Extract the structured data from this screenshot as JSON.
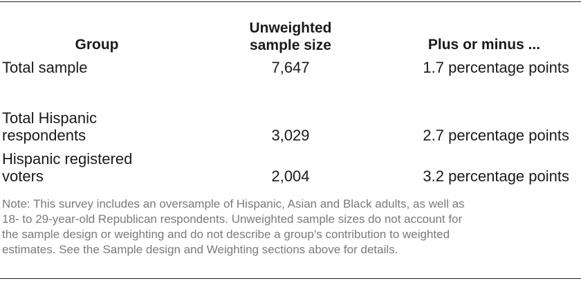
{
  "table": {
    "headers": {
      "group": "Group",
      "size_line1": "Unweighted",
      "size_line2": "sample size",
      "moe": "Plus or minus ..."
    },
    "rows": [
      {
        "group": "Total sample",
        "size": "7,647",
        "moe": "1.7 percentage points"
      },
      {
        "group_line1": "Total Hispanic",
        "group_line2": "respondents",
        "size": "3,029",
        "moe": "2.7 percentage points"
      },
      {
        "group_line1": "Hispanic registered",
        "group_line2": "voters",
        "size": "2,004",
        "moe": "3.2 percentage points"
      }
    ]
  },
  "note": {
    "line1": "Note: This survey includes an oversample of Hispanic, Asian and Black adults, as well as",
    "line2": "18- to 29-year-old Republican respondents. Unweighted sample sizes do not account for",
    "line3": "the sample design or weighting and do not describe a group’s contribution to weighted",
    "line4": "estimates. See the Sample design and Weighting sections above for details."
  }
}
